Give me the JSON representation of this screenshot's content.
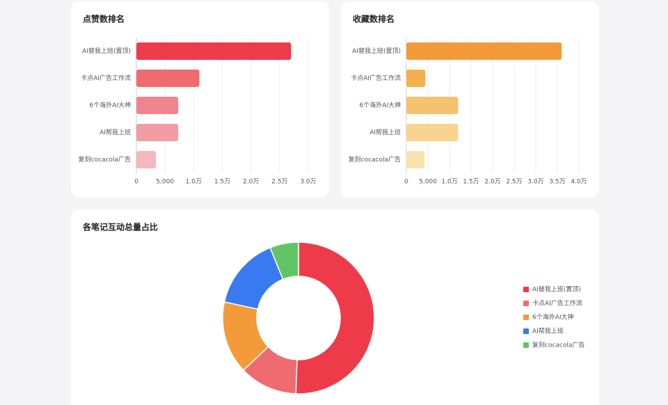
{
  "chart_data": [
    {
      "type": "hbar",
      "title": "点赞数排名",
      "categories": [
        "AI替我上班(置顶)",
        "卡点AI广告工作流",
        "6个海外AI大神",
        "AI帮我上班",
        "复刻cocacola广告"
      ],
      "values": [
        27000,
        11000,
        7300,
        7300,
        3400
      ],
      "colors": [
        "#ee3b4a",
        "#ef6b70",
        "#f0848c",
        "#f29ca3",
        "#f5b8bd"
      ],
      "xlim": [
        0,
        30000
      ],
      "xticks": [
        0,
        {
          "value": 5000,
          "label": "5,000"
        },
        {
          "value": 10000,
          "label": "1.0万"
        },
        {
          "value": 15000,
          "label": "1.5万"
        },
        {
          "value": 20000,
          "label": "2.0万"
        },
        {
          "value": 25000,
          "label": "2.5万"
        },
        {
          "value": 30000,
          "label": "3.0万"
        }
      ],
      "grid": true
    },
    {
      "type": "hbar",
      "title": "收藏数排名",
      "categories": [
        "AI替我上班(置顶)",
        "卡点AI广告工作流",
        "6个海外AI大神",
        "AI帮我上班",
        "复刻cocacola广告"
      ],
      "values": [
        36000,
        4400,
        12000,
        12000,
        4200
      ],
      "colors": [
        "#f29b38",
        "#f4b050",
        "#f5c26e",
        "#f8d48e",
        "#fae4ad"
      ],
      "xlim": [
        0,
        40000
      ],
      "xticks": [
        0,
        {
          "value": 5000,
          "label": "5,000"
        },
        {
          "value": 10000,
          "label": "1.0万"
        },
        {
          "value": 15000,
          "label": "1.5万"
        },
        {
          "value": 20000,
          "label": "2.0万"
        },
        {
          "value": 25000,
          "label": "2.5万"
        },
        {
          "value": 30000,
          "label": "3.0万"
        },
        {
          "value": 35000,
          "label": "3.5万"
        },
        {
          "value": 40000,
          "label": "4.0万"
        }
      ],
      "grid": true
    },
    {
      "type": "pie",
      "title": "各笔记互动总量占比",
      "donut": true,
      "legend": "right",
      "categories": [
        "AI替我上班(置顶)",
        "卡点AI广告工作流",
        "6个海外AI大神",
        "AI帮我上班",
        "复刻cocacola广告"
      ],
      "values": [
        63000,
        15400,
        19300,
        19300,
        7600
      ],
      "colors": [
        "#ee3b4a",
        "#ef6b70",
        "#f29b38",
        "#3a7af0",
        "#63c466"
      ]
    }
  ]
}
